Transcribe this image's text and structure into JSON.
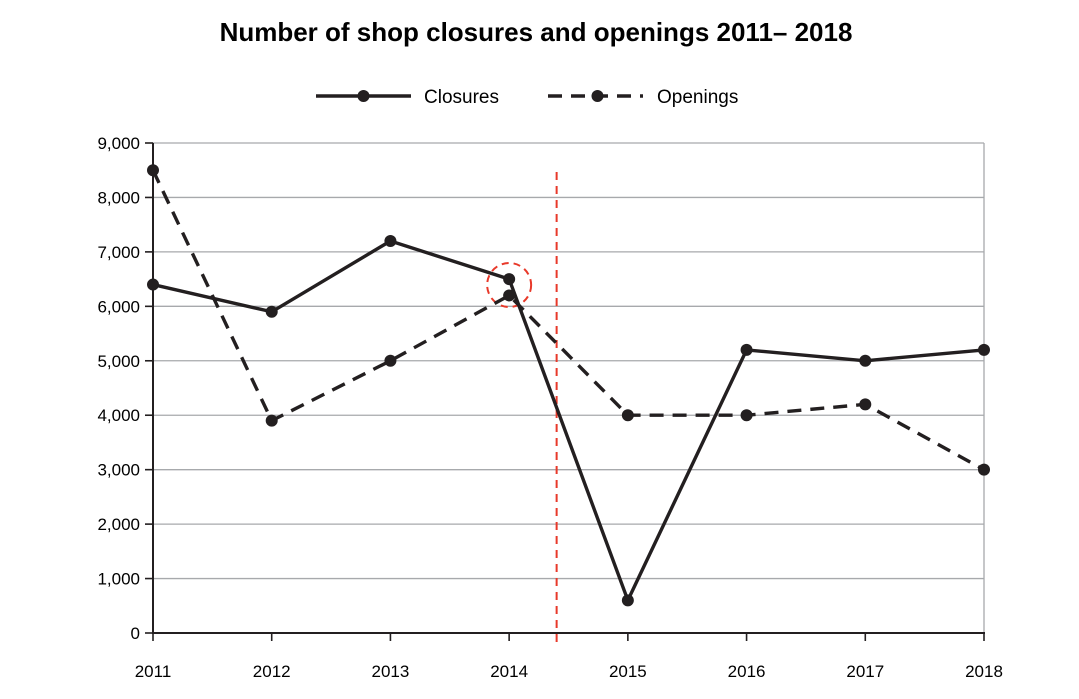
{
  "chart_data": {
    "type": "line",
    "title": "Number of shop closures and openings 2011– 2018",
    "xlabel": "",
    "ylabel": "",
    "categories": [
      "2011",
      "2012",
      "2013",
      "2014",
      "2015",
      "2016",
      "2017",
      "2018"
    ],
    "ylim": [
      0,
      9000
    ],
    "yticks": [
      0,
      1000,
      2000,
      3000,
      4000,
      5000,
      6000,
      7000,
      8000,
      9000
    ],
    "ytick_labels": [
      "0",
      "1,000",
      "2,000",
      "3,000",
      "4,000",
      "5,000",
      "6,000",
      "7,000",
      "8,000",
      "9,000"
    ],
    "grid": "horizontal",
    "legend_position": "top-center",
    "series": [
      {
        "name": "Closures",
        "style": "solid",
        "color": "#231f20",
        "values": [
          6400,
          5900,
          7200,
          6500,
          600,
          5200,
          5000,
          5200
        ]
      },
      {
        "name": "Openings",
        "style": "dashed",
        "color": "#231f20",
        "values": [
          8500,
          3900,
          5000,
          6200,
          4000,
          4000,
          4200,
          3000
        ]
      }
    ],
    "annotations": [
      {
        "type": "vertical-dashed-line",
        "color": "#e8392a",
        "at_x": 2014.4
      },
      {
        "type": "dashed-circle",
        "color": "#e8392a",
        "around_category": "2014"
      }
    ]
  }
}
